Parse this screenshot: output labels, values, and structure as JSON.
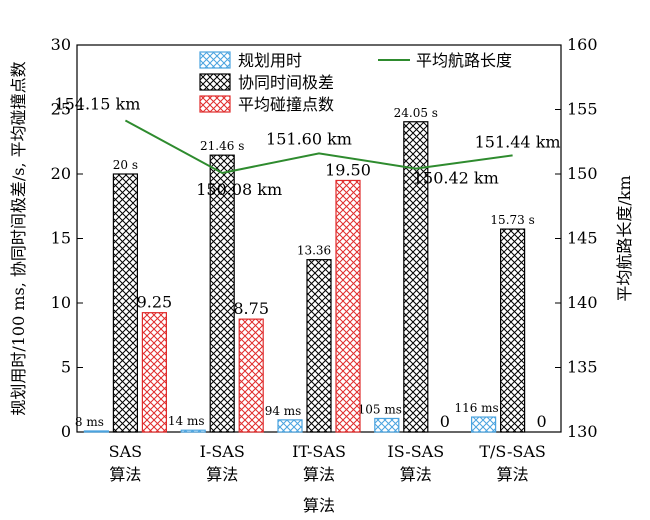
{
  "chart_data": {
    "type": "bar+line",
    "categories": [
      {
        "line1": "SAS",
        "line2": "算法"
      },
      {
        "line1": "I-SAS",
        "line2": "算法"
      },
      {
        "line1": "IT-SAS",
        "line2": "算法"
      },
      {
        "line1": "IS-SAS",
        "line2": "算法"
      },
      {
        "line1": "T/S-SAS",
        "line2": "算法"
      }
    ],
    "xlabel": "算法",
    "ylabel_left": "规划用时/100 ms, 协同时间极差/s, 平均碰撞点数",
    "ylabel_right": "平均航路长度/km",
    "ylim_left": [
      0,
      30
    ],
    "ylim_right": [
      130,
      160
    ],
    "yticks_left": [
      0,
      5,
      10,
      15,
      20,
      25,
      30
    ],
    "yticks_right": [
      130,
      135,
      140,
      145,
      150,
      155,
      160
    ],
    "bar_series": [
      {
        "name": "规划用时",
        "values": [
          0.08,
          0.14,
          0.94,
          1.05,
          1.16
        ],
        "labels": [
          "8 ms",
          "14 ms",
          "94 ms",
          "105 ms",
          "116 ms"
        ],
        "color": "#4aa3df",
        "pattern": "crosshatch"
      },
      {
        "name": "协同时间极差",
        "values": [
          20,
          21.46,
          13.36,
          24.05,
          15.73
        ],
        "labels": [
          "20 s",
          "21.46 s",
          "13.36 s",
          "24.05 s",
          "15.73 s"
        ],
        "color": "#000000",
        "pattern": "crosshatch"
      },
      {
        "name": "平均碰撞点数",
        "values": [
          9.25,
          8.75,
          19.5,
          0,
          0
        ],
        "labels": [
          "9.25",
          "8.75",
          "19.50",
          "0",
          "0"
        ],
        "color": "#e02b2b",
        "pattern": "crosshatch"
      }
    ],
    "line_series": {
      "name": "平均航路长度",
      "axis": "right",
      "values": [
        154.15,
        150.08,
        151.6,
        150.42,
        151.44
      ],
      "labels": [
        "154.15 km",
        "150.08 km",
        "151.60 km",
        "150.42 km",
        "151.44 km"
      ],
      "color": "#2e8b2e"
    },
    "legend_placement": "top"
  }
}
